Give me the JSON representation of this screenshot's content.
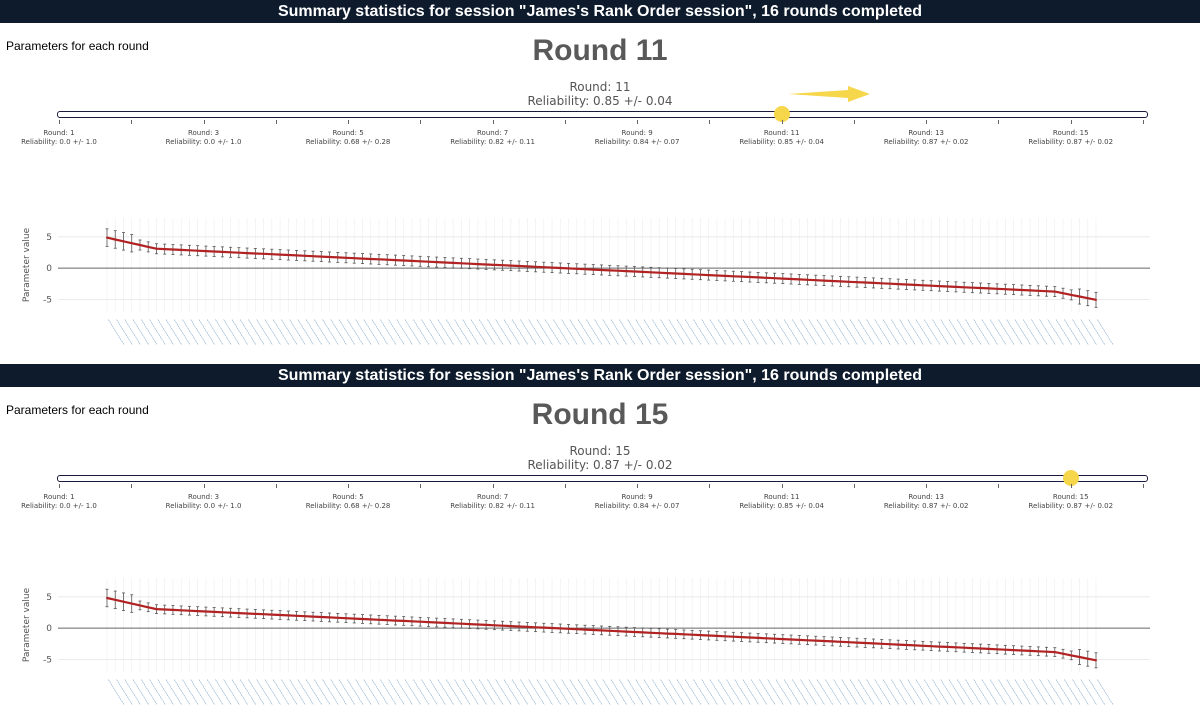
{
  "panels": [
    {
      "banner": "Summary statistics for session \"James's Rank Order session\", 16 rounds completed",
      "params_label": "Parameters for each round",
      "title": "Round 11",
      "slider_round": "Round: 11",
      "slider_reliability": "Reliability: 0.85 +/- 0.04",
      "slider_value": 11,
      "show_arrow": true
    },
    {
      "banner": "Summary statistics for session \"James's Rank Order session\", 16 rounds completed",
      "params_label": "Parameters for each round",
      "title": "Round 15",
      "slider_round": "Round: 15",
      "slider_reliability": "Reliability: 0.87 +/- 0.02",
      "slider_value": 15,
      "show_arrow": false
    }
  ],
  "slider_steps": [
    {
      "round": 1,
      "label_round": "Round: 1",
      "label_rel": "Reliability: 0.0 +/- 1.0"
    },
    {
      "round": 3,
      "label_round": "Round: 3",
      "label_rel": "Reliability: 0.0 +/- 1.0"
    },
    {
      "round": 5,
      "label_round": "Round: 5",
      "label_rel": "Reliability: 0.68 +/- 0.28"
    },
    {
      "round": 7,
      "label_round": "Round: 7",
      "label_rel": "Reliability: 0.82 +/- 0.11"
    },
    {
      "round": 9,
      "label_round": "Round: 9",
      "label_rel": "Reliability: 0.84 +/- 0.07"
    },
    {
      "round": 11,
      "label_round": "Round: 11",
      "label_rel": "Reliability: 0.85 +/- 0.04"
    },
    {
      "round": 13,
      "label_round": "Round: 13",
      "label_rel": "Reliability: 0.87 +/- 0.02"
    },
    {
      "round": 15,
      "label_round": "Round: 15",
      "label_rel": "Reliability: 0.87 +/- 0.02"
    }
  ],
  "slider_range": [
    1,
    16
  ],
  "colors": {
    "banner_bg": "#0e1b2c",
    "line": "#b22222",
    "error_bar": "#555555",
    "handle": "#f6d64a",
    "arrow": "#f6d64a",
    "track_border": "#1a1a3e",
    "tick_text": "#4a7ab8"
  },
  "chart_data": [
    {
      "type": "line",
      "ylabel": "Parameter value",
      "yticks": [
        5,
        0,
        -5
      ],
      "ylim": [
        -7,
        8
      ],
      "n_points": 121,
      "y_start": 5.6,
      "y_end": -5.2,
      "err_start": 1.4,
      "err_mid": 0.8,
      "err_end": 1.2,
      "grid": true,
      "x_tick_labels": "rotated item names (illegible)"
    },
    {
      "type": "line",
      "ylabel": "Parameter value",
      "yticks": [
        5,
        0,
        -5
      ],
      "ylim": [
        -7,
        8
      ],
      "n_points": 121,
      "y_start": 5.5,
      "y_end": -5.3,
      "err_start": 1.4,
      "err_mid": 0.7,
      "err_end": 1.2,
      "grid": true,
      "x_tick_labels": "rotated item names (illegible)"
    }
  ]
}
